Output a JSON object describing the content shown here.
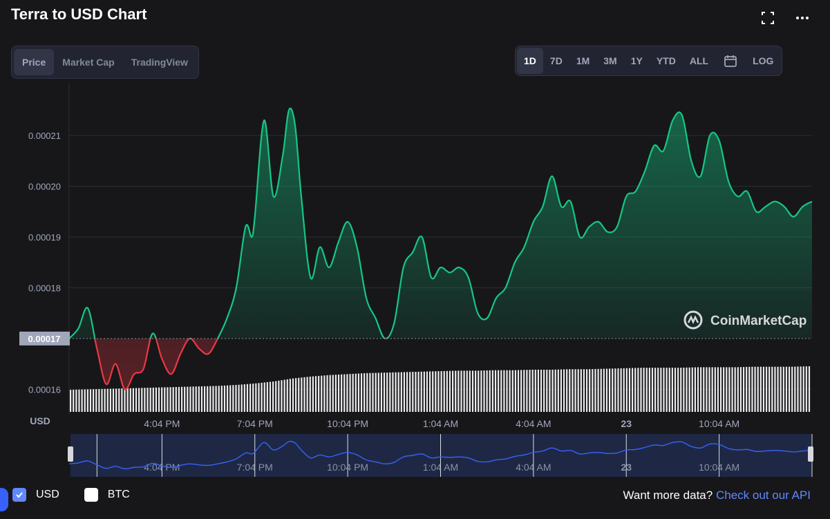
{
  "title": "Terra to USD Chart",
  "tabs_left": [
    {
      "label": "Price",
      "active": true
    },
    {
      "label": "Market Cap",
      "active": false
    },
    {
      "label": "TradingView",
      "active": false
    }
  ],
  "tabs_right": [
    {
      "label": "1D",
      "active": true
    },
    {
      "label": "7D",
      "active": false
    },
    {
      "label": "1M",
      "active": false
    },
    {
      "label": "3M",
      "active": false
    },
    {
      "label": "1Y",
      "active": false
    },
    {
      "label": "YTD",
      "active": false
    },
    {
      "label": "ALL",
      "active": false
    }
  ],
  "log_label": "LOG",
  "icons": {
    "fullscreen": "fullscreen-icon",
    "more": "more-dots-icon",
    "calendar": "calendar-icon"
  },
  "watermark": "CoinMarketCap",
  "currency_label": "USD",
  "current_price_label": "0.00017",
  "legend": {
    "usd": "USD",
    "btc": "BTC"
  },
  "more_data": {
    "text": "Want more data?",
    "link": "Check out our API"
  },
  "colors": {
    "up": "#16c784",
    "down": "#ea3943",
    "navigator": "#3861fb",
    "bg": "#17171a"
  },
  "chart_data": {
    "type": "line",
    "series_name": "USD",
    "y_ticks": [
      "0.00021",
      "0.00020",
      "0.00019",
      "0.00018",
      "0.00016"
    ],
    "y_tick_values": [
      0.00021,
      0.0002,
      0.00019,
      0.00018,
      0.00016
    ],
    "reference_value": 0.00017,
    "ylim": [
      0.000155,
      0.000219
    ],
    "x_ticks": [
      "4:04 PM",
      "7:04 PM",
      "10:04 PM",
      "1:04 AM",
      "4:04 AM",
      "23",
      "10:04 AM"
    ],
    "x_tick_hours": [
      3,
      6,
      9,
      12,
      15,
      18,
      21
    ],
    "x_range_hours": [
      0,
      24
    ],
    "points_hours": [
      0,
      0.3,
      0.6,
      0.9,
      1.2,
      1.5,
      1.8,
      2.1,
      2.4,
      2.7,
      3.0,
      3.3,
      3.6,
      3.9,
      4.2,
      4.5,
      4.8,
      5.1,
      5.4,
      5.7,
      5.9,
      6.0,
      6.3,
      6.6,
      6.9,
      7.1,
      7.3,
      7.5,
      7.8,
      8.1,
      8.4,
      8.7,
      9.0,
      9.3,
      9.6,
      9.9,
      10.2,
      10.5,
      10.8,
      11.1,
      11.4,
      11.7,
      12.0,
      12.3,
      12.6,
      12.9,
      13.2,
      13.5,
      13.8,
      14.1,
      14.4,
      14.7,
      15.0,
      15.3,
      15.6,
      15.9,
      16.2,
      16.5,
      16.8,
      17.1,
      17.4,
      17.7,
      18.0,
      18.3,
      18.6,
      18.9,
      19.2,
      19.5,
      19.8,
      20.1,
      20.4,
      20.7,
      21.0,
      21.3,
      21.6,
      21.9,
      22.2,
      22.5,
      22.8,
      23.1,
      23.4,
      23.7,
      24.0
    ],
    "points_values": [
      0.00017,
      0.000172,
      0.000176,
      0.000168,
      0.000161,
      0.000165,
      0.00016,
      0.000163,
      0.000164,
      0.000171,
      0.000166,
      0.000163,
      0.000167,
      0.00017,
      0.000168,
      0.000167,
      0.00017,
      0.000174,
      0.00018,
      0.000192,
      0.00019,
      0.000194,
      0.000213,
      0.000198,
      0.000206,
      0.000215,
      0.000212,
      0.000198,
      0.000182,
      0.000188,
      0.000184,
      0.000189,
      0.000193,
      0.000188,
      0.000178,
      0.000174,
      0.00017,
      0.000173,
      0.000184,
      0.000187,
      0.00019,
      0.000182,
      0.000184,
      0.000183,
      0.000184,
      0.000182,
      0.000175,
      0.000174,
      0.000178,
      0.00018,
      0.000185,
      0.000188,
      0.000193,
      0.000196,
      0.000202,
      0.000196,
      0.000197,
      0.00019,
      0.000192,
      0.000193,
      0.000191,
      0.000192,
      0.000198,
      0.000199,
      0.000203,
      0.000208,
      0.000207,
      0.000213,
      0.000214,
      0.000205,
      0.000202,
      0.00021,
      0.000209,
      0.000201,
      0.000198,
      0.000199,
      0.000195,
      0.000196,
      0.000197,
      0.000196,
      0.000194,
      0.000196,
      0.000197
    ],
    "volume_relative": [
      0.45,
      0.46,
      0.47,
      0.48,
      0.49,
      0.5,
      0.51,
      0.52,
      0.53,
      0.55,
      0.58,
      0.62,
      0.68,
      0.72,
      0.75,
      0.77,
      0.79,
      0.8,
      0.81,
      0.82,
      0.83,
      0.84,
      0.84,
      0.85,
      0.85,
      0.86,
      0.86,
      0.87,
      0.87,
      0.88,
      0.89,
      0.9,
      0.9,
      0.9,
      0.91,
      0.91,
      0.91,
      0.92,
      0.92,
      0.92,
      0.93
    ],
    "grid": true
  }
}
